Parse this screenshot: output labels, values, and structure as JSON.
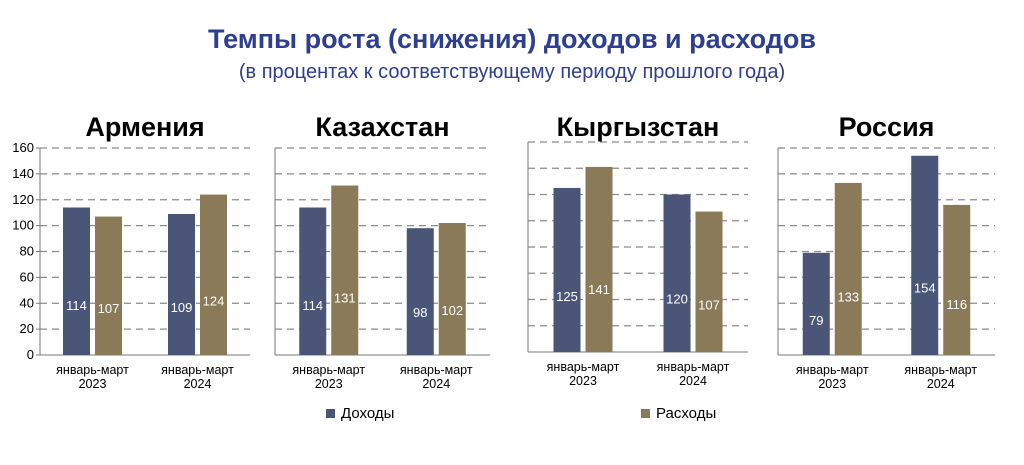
{
  "title": "Темпы роста (снижения) доходов и расходов",
  "subtitle": "(в процентах к соответствующему периоду прошлого года)",
  "colors": {
    "income": "#4a5577",
    "expense": "#8a7a57",
    "grid": "#8c8c8c"
  },
  "legend": [
    {
      "label": "Доходы",
      "color": "#4a5577"
    },
    {
      "label": "Расходы",
      "color": "#8a7a57"
    }
  ],
  "chart_data": [
    {
      "type": "bar",
      "title": "Армения",
      "categories": [
        [
          "январь-март",
          "2023"
        ],
        [
          "январь-март",
          "2024"
        ]
      ],
      "series": [
        {
          "name": "Доходы",
          "values": [
            114,
            109
          ]
        },
        {
          "name": "Расходы",
          "values": [
            107,
            124
          ]
        }
      ],
      "ylim": [
        0,
        160
      ],
      "yticks": [
        "0",
        "20",
        "40",
        "60",
        "80",
        "100",
        "120",
        "140",
        "160"
      ],
      "grid": true
    },
    {
      "type": "bar",
      "title": "Казахстан",
      "categories": [
        [
          "январь-март",
          "2023"
        ],
        [
          "январь-март",
          "2024"
        ]
      ],
      "series": [
        {
          "name": "Доходы",
          "values": [
            114,
            98
          ]
        },
        {
          "name": "Расходы",
          "values": [
            131,
            102
          ]
        }
      ],
      "ylim": [
        0,
        160
      ],
      "grid": true
    },
    {
      "type": "bar",
      "title": "Кыргызстан",
      "categories": [
        [
          "январь-март",
          "2023"
        ],
        [
          "январь-март",
          "2024"
        ]
      ],
      "series": [
        {
          "name": "Доходы",
          "values": [
            125,
            120
          ]
        },
        {
          "name": "Расходы",
          "values": [
            141,
            107
          ]
        }
      ],
      "ylim": [
        0,
        160
      ],
      "grid": true
    },
    {
      "type": "bar",
      "title": "Россия",
      "categories": [
        [
          "январь-март",
          "2023"
        ],
        [
          "январь-март",
          "2024"
        ]
      ],
      "series": [
        {
          "name": "Доходы",
          "values": [
            79,
            154
          ]
        },
        {
          "name": "Расходы",
          "values": [
            133,
            116
          ]
        }
      ],
      "ylim": [
        0,
        160
      ],
      "grid": true
    }
  ]
}
